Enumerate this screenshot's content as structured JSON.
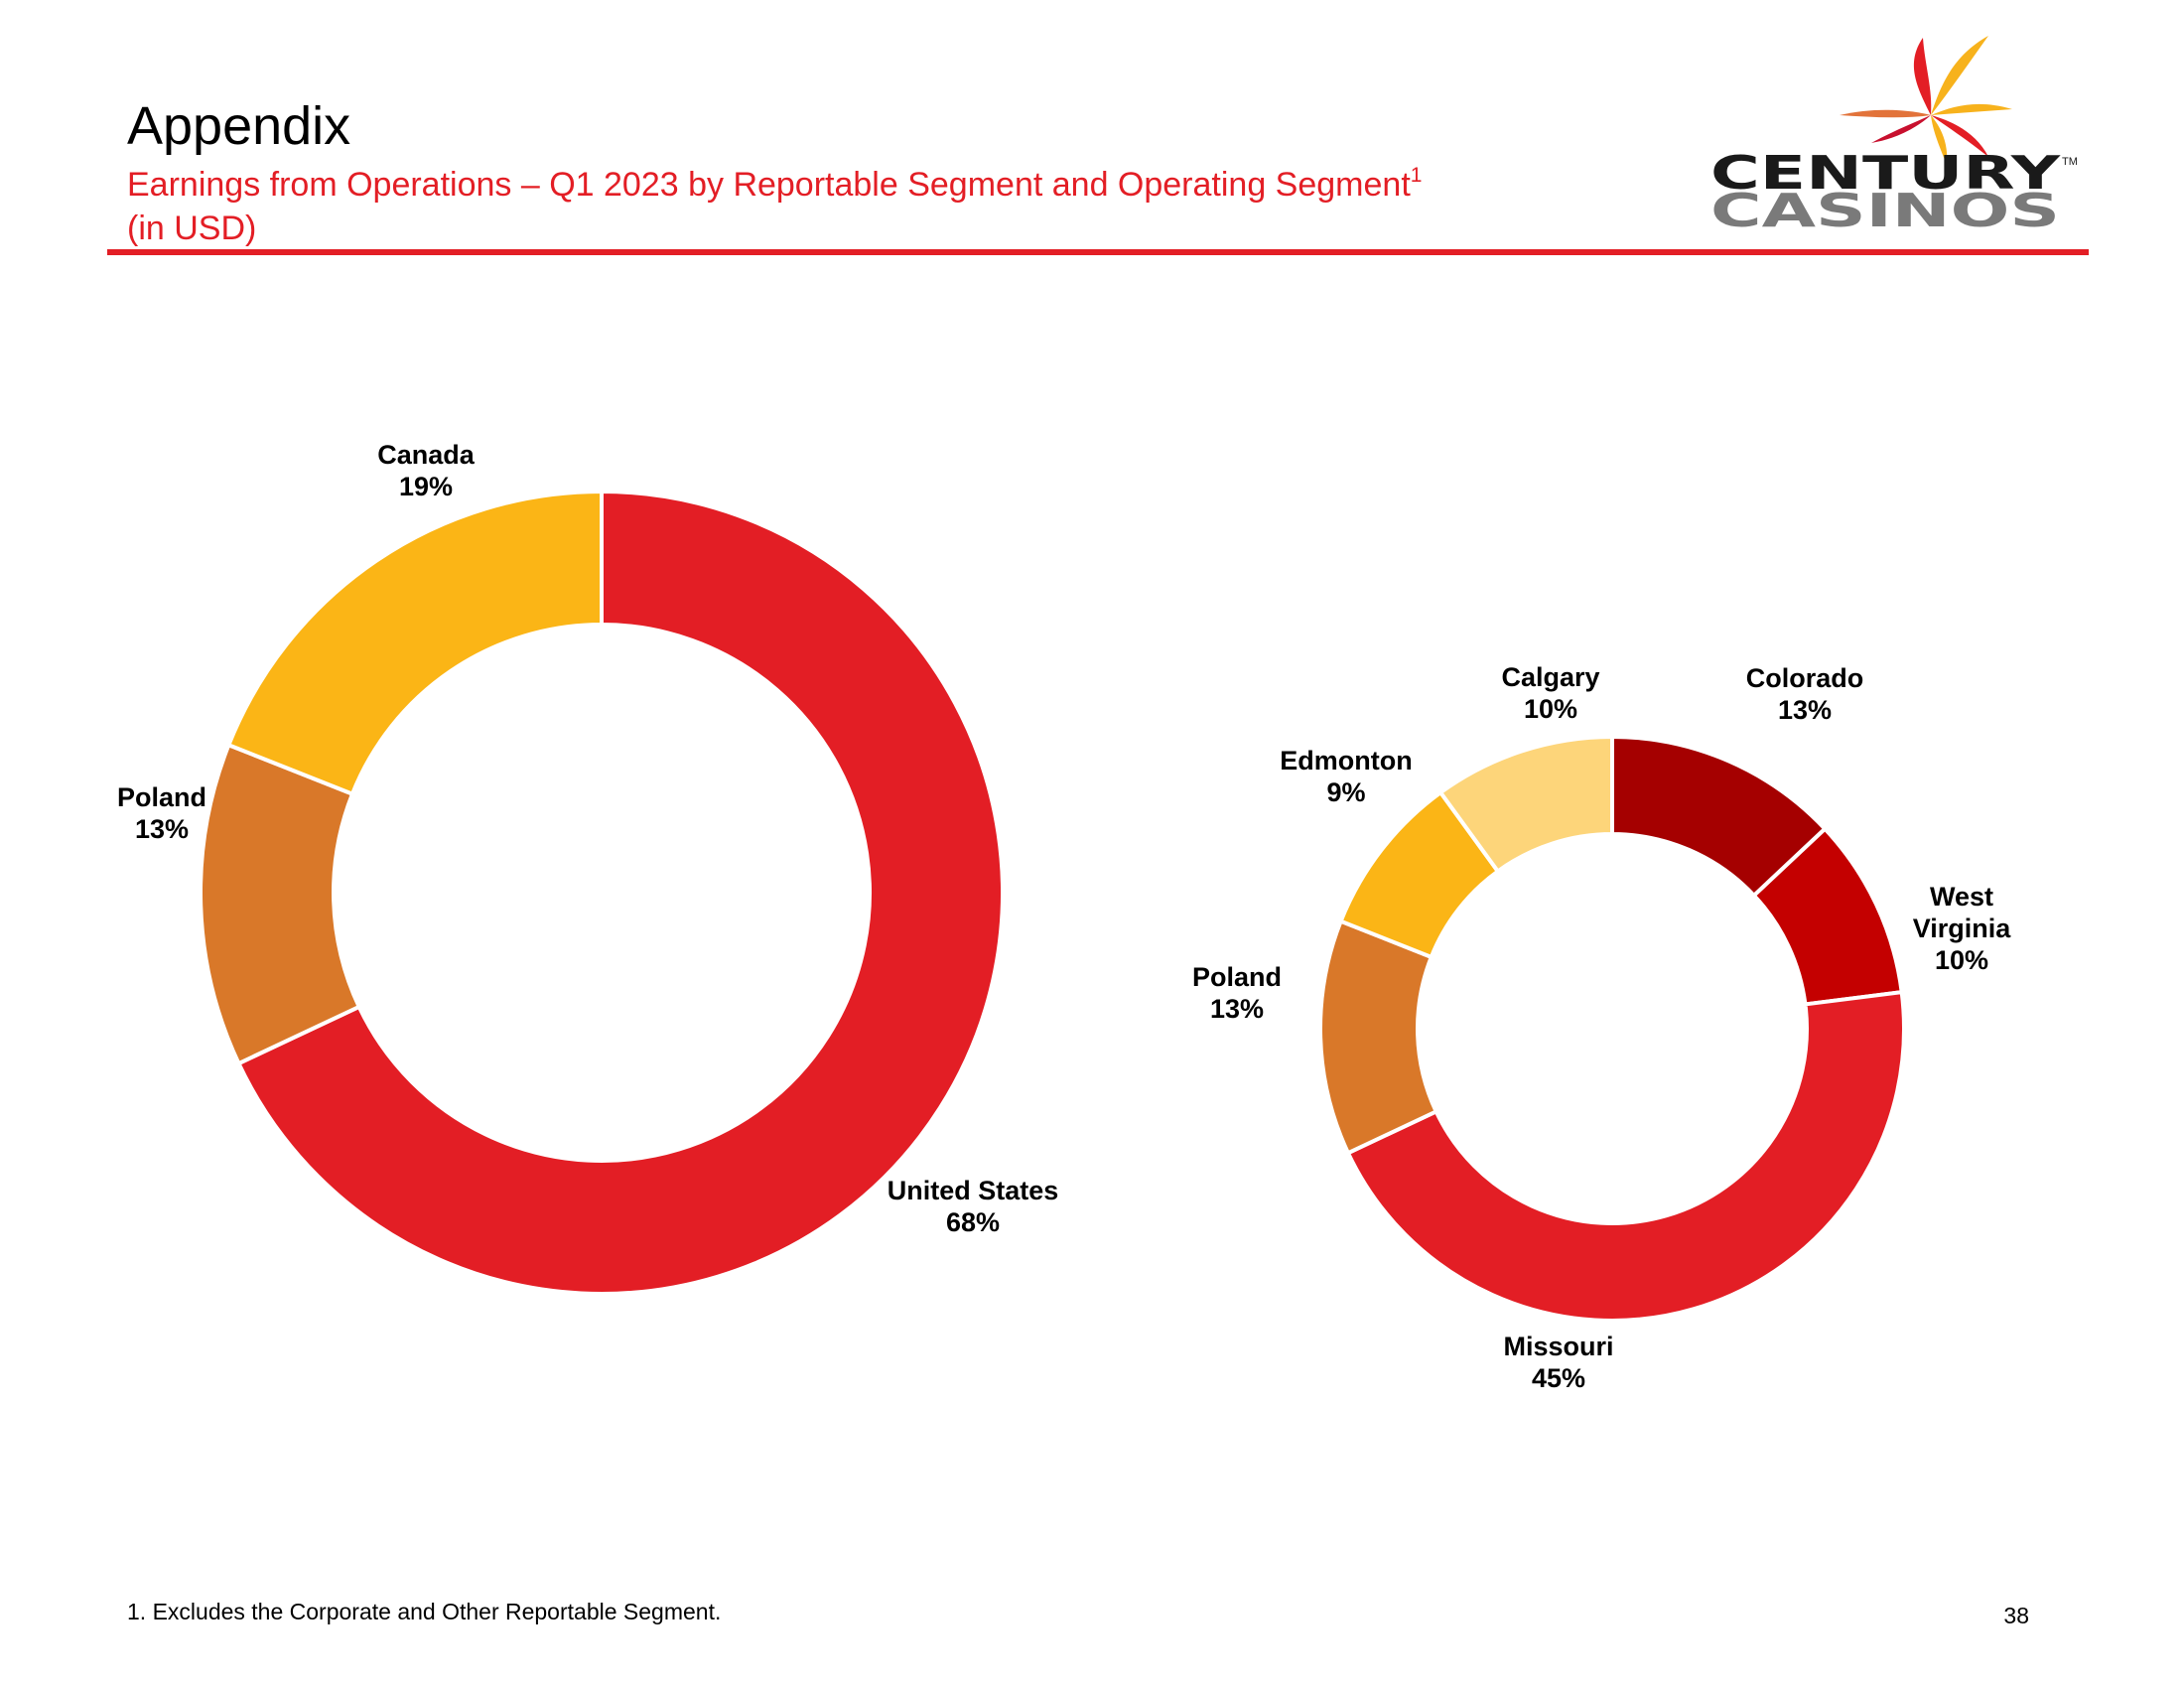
{
  "header": {
    "title": "Appendix",
    "subtitle_line1": "Earnings from Operations – Q1 2023 by Reportable Segment and Operating Segment",
    "subtitle_superscript": "1",
    "subtitle_line2": "(in USD)",
    "accent_color": "#e31e25"
  },
  "logo": {
    "word1": "CENTURY",
    "word2": "CASINOS",
    "trademark": "TM",
    "word1_color": "#1a1a1a",
    "word2_color": "#7a7a7a",
    "petal_colors": [
      "#e31e25",
      "#f7b21c",
      "#e2733a",
      "#c8102e"
    ]
  },
  "chart_data": [
    {
      "type": "pie",
      "variant": "donut",
      "title": "",
      "slices": [
        {
          "label": "United States",
          "value": 68,
          "pct_label": "68%",
          "color": "#e31e25"
        },
        {
          "label": "Poland",
          "value": 13,
          "pct_label": "13%",
          "color": "#d97829"
        },
        {
          "label": "Canada",
          "value": 19,
          "pct_label": "19%",
          "color": "#fbb516"
        }
      ]
    },
    {
      "type": "pie",
      "variant": "donut",
      "title": "",
      "slices": [
        {
          "label": "Colorado",
          "value": 13,
          "pct_label": "13%",
          "color": "#a50000"
        },
        {
          "label": "West Virginia",
          "value": 10,
          "pct_label": "10%",
          "color": "#c40000"
        },
        {
          "label": "Missouri",
          "value": 45,
          "pct_label": "45%",
          "color": "#e31e25"
        },
        {
          "label": "Poland",
          "value": 13,
          "pct_label": "13%",
          "color": "#d97829"
        },
        {
          "label": "Edmonton",
          "value": 9,
          "pct_label": "9%",
          "color": "#fbb516"
        },
        {
          "label": "Calgary",
          "value": 10,
          "pct_label": "10%",
          "color": "#fdd57a"
        }
      ]
    }
  ],
  "footnote": "1. Excludes the Corporate and Other Reportable Segment.",
  "page_number": "38"
}
